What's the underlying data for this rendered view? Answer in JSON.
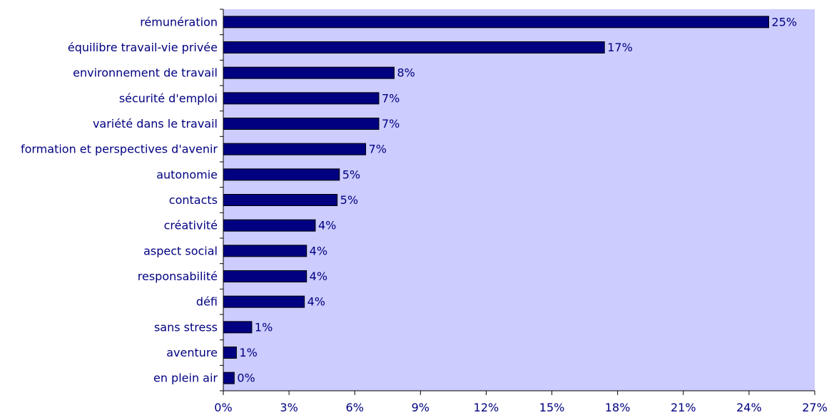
{
  "chart_data": {
    "type": "bar",
    "orientation": "horizontal",
    "categories": [
      "rémunération",
      "équilibre travail-vie privée",
      "environnement de travail",
      "sécurité d'emploi",
      "variété dans le travail",
      "formation et perspectives d'avenir",
      "autonomie",
      "contacts",
      "créativité",
      "aspect social",
      "responsabilité",
      "défi",
      "sans stress",
      "aventure",
      "en plein air"
    ],
    "values": [
      24.9,
      17.4,
      7.8,
      7.1,
      7.1,
      6.5,
      5.3,
      5.2,
      4.2,
      3.8,
      3.8,
      3.7,
      1.3,
      0.6,
      0.5
    ],
    "data_labels": [
      "25%",
      "17%",
      "8%",
      "7%",
      "7%",
      "7%",
      "5%",
      "5%",
      "4%",
      "4%",
      "4%",
      "4%",
      "1%",
      "1%",
      "0%"
    ],
    "x_ticks": [
      0,
      3,
      6,
      9,
      12,
      15,
      18,
      21,
      24,
      27
    ],
    "x_tick_labels": [
      "0%",
      "3%",
      "6%",
      "9%",
      "12%",
      "15%",
      "18%",
      "21%",
      "24%",
      "27%"
    ],
    "xlim": [
      0,
      27
    ],
    "title": "",
    "xlabel": "",
    "ylabel": "",
    "grid": false,
    "colors": {
      "bar_fill": "#000080",
      "bar_stroke": "#000000",
      "plot_background": "#ccccff",
      "text": "#000080",
      "axis": "#000000"
    }
  }
}
